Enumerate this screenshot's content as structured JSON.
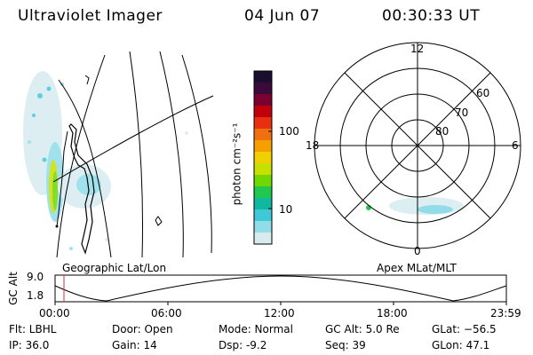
{
  "header": {
    "instrument": "Ultraviolet Imager",
    "date": "04 Jun 07",
    "time": "00:30:33 UT"
  },
  "colorbar": {
    "unit_label": "photon cm⁻²s⁻¹",
    "ticks": [
      "100",
      "10"
    ],
    "colors": [
      "#1a0f2e",
      "#3a0a3a",
      "#7a0030",
      "#c0000a",
      "#e83010",
      "#f07010",
      "#f5a000",
      "#f0d000",
      "#c8e000",
      "#70d800",
      "#20c850",
      "#10b8a0",
      "#40c8d8",
      "#90dce8",
      "#d8ecf0"
    ]
  },
  "left_panel": {
    "label": "Geographic Lat/Lon"
  },
  "polar_panel": {
    "label": "Apex MLat/MLT",
    "mlt_labels": {
      "top": "12",
      "left": "18",
      "right": "6",
      "bottom": "0"
    },
    "lat_labels": [
      "60",
      "70",
      "80"
    ]
  },
  "altitude_plot": {
    "ylabel": "GC Alt",
    "yticks": [
      "9.0",
      "1.8"
    ],
    "xticks": [
      "00:00",
      "06:00",
      "12:00",
      "18:00",
      "23:59"
    ],
    "marker_color": "#d03030"
  },
  "info": {
    "flt": "Flt: LBHL",
    "ip": "IP: 36.0",
    "door": "Door: Open",
    "gain": "Gain: 14",
    "mode": "Mode: Normal",
    "dsp": "Dsp:  -9.2",
    "gc_alt": "GC Alt: 5.0 Re",
    "seq": "Seq: 39",
    "glat": "GLat: −56.5",
    "glon": "GLon:  47.1"
  }
}
